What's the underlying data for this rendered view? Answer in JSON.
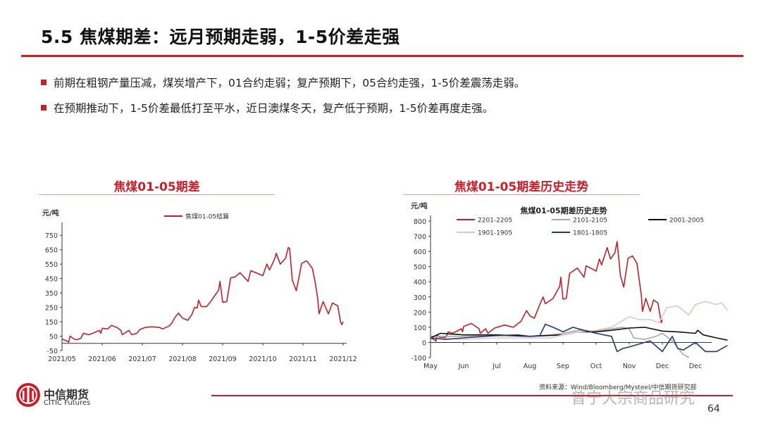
{
  "header": {
    "title": "5.5 焦煤期差：远月预期走弱，1-5价差走强",
    "accent": "#c8202a"
  },
  "bullets": [
    "前期在粗钢产量压减，煤炭增产下，01合约走弱；复产预期下，05合约走强，1-5价差震荡走弱。",
    "在预期推动下，1-5价差最低打至平水，近日澳煤冬天，复产低于预期，1-5价差再度走强。"
  ],
  "chart_data": [
    {
      "type": "line",
      "header": "焦煤01-05期差",
      "ylabel": "元/吨",
      "ylim": [
        -50,
        800
      ],
      "yticks": [
        750,
        650,
        550,
        450,
        350,
        250,
        150,
        50,
        -50
      ],
      "xticks": [
        "2021/05",
        "2021/06",
        "2021/07",
        "2021/08",
        "2021/09",
        "2021/10",
        "2021/11",
        "2021/12"
      ],
      "legend_position": "top-center",
      "grid": false,
      "series": [
        {
          "name": "焦煤01-05结算",
          "color": "#c0202a",
          "points": [
            [
              "2021-05-01",
              30
            ],
            [
              "2021-05-05",
              15
            ],
            [
              "2021-05-06",
              8
            ],
            [
              "2021-05-07",
              50
            ],
            [
              "2021-05-10",
              30
            ],
            [
              "2021-05-12",
              25
            ],
            [
              "2021-05-15",
              35
            ],
            [
              "2021-05-17",
              70
            ],
            [
              "2021-05-21",
              60
            ],
            [
              "2021-05-24",
              70
            ],
            [
              "2021-05-29",
              90
            ],
            [
              "2021-05-30",
              70
            ],
            [
              "2021-06-01",
              105
            ],
            [
              "2021-06-05",
              100
            ],
            [
              "2021-06-08",
              125
            ],
            [
              "2021-06-12",
              110
            ],
            [
              "2021-06-15",
              90
            ],
            [
              "2021-06-16",
              60
            ],
            [
              "2021-06-21",
              90
            ],
            [
              "2021-06-23",
              60
            ],
            [
              "2021-06-27",
              70
            ],
            [
              "2021-06-29",
              95
            ],
            [
              "2021-07-03",
              110
            ],
            [
              "2021-07-08",
              115
            ],
            [
              "2021-07-14",
              110
            ],
            [
              "2021-07-16",
              100
            ],
            [
              "2021-07-21",
              120
            ],
            [
              "2021-07-23",
              140
            ],
            [
              "2021-07-25",
              175
            ],
            [
              "2021-07-28",
              210
            ],
            [
              "2021-08-01",
              175
            ],
            [
              "2021-08-05",
              160
            ],
            [
              "2021-08-08",
              200
            ],
            [
              "2021-08-10",
              250
            ],
            [
              "2021-08-12",
              245
            ],
            [
              "2021-08-13",
              300
            ],
            [
              "2021-08-15",
              255
            ],
            [
              "2021-08-19",
              255
            ],
            [
              "2021-08-22",
              290
            ],
            [
              "2021-08-28",
              370
            ],
            [
              "2021-08-29",
              430
            ],
            [
              "2021-08-30",
              360
            ],
            [
              "2021-09-01",
              285
            ],
            [
              "2021-09-04",
              290
            ],
            [
              "2021-09-07",
              455
            ],
            [
              "2021-09-10",
              460
            ],
            [
              "2021-09-14",
              490
            ],
            [
              "2021-09-20",
              430
            ],
            [
              "2021-09-22",
              505
            ],
            [
              "2021-10-01",
              470
            ],
            [
              "2021-10-04",
              550
            ],
            [
              "2021-10-06",
              510
            ],
            [
              "2021-10-10",
              590
            ],
            [
              "2021-10-11",
              625
            ],
            [
              "2021-10-14",
              550
            ],
            [
              "2021-10-18",
              590
            ],
            [
              "2021-10-20",
              665
            ],
            [
              "2021-10-21",
              660
            ],
            [
              "2021-10-23",
              440
            ],
            [
              "2021-10-26",
              365
            ],
            [
              "2021-10-30",
              555
            ],
            [
              "2021-11-03",
              570
            ],
            [
              "2021-11-04",
              570
            ],
            [
              "2021-11-08",
              520
            ],
            [
              "2021-11-10",
              430
            ],
            [
              "2021-11-12",
              310
            ],
            [
              "2021-11-13",
              205
            ],
            [
              "2021-11-16",
              290
            ],
            [
              "2021-11-20",
              205
            ],
            [
              "2021-11-23",
              280
            ],
            [
              "2021-11-27",
              260
            ],
            [
              "2021-11-29",
              150
            ],
            [
              "2021-11-30",
              130
            ],
            [
              "2021-12-01",
              150
            ]
          ]
        }
      ]
    },
    {
      "type": "line",
      "header": "焦煤01-05期差历史走势",
      "title": "焦煤01-05期差历史走势",
      "ylabel": "元/吨",
      "ylim": [
        -100,
        800
      ],
      "yticks": [
        800,
        700,
        600,
        500,
        400,
        300,
        200,
        100,
        0,
        -100
      ],
      "xticks": [
        "May",
        "Jun",
        "Jul",
        "Aug",
        "Sep",
        "Oct",
        "Nov",
        "Dec",
        "Dec"
      ],
      "legend_position": "top",
      "grid": false,
      "series": [
        {
          "name": "2201-2205",
          "color": "#c0202a",
          "points": [
            [
              "05-01",
              30
            ],
            [
              "05-05",
              15
            ],
            [
              "05-06",
              8
            ],
            [
              "05-07",
              50
            ],
            [
              "05-10",
              30
            ],
            [
              "05-15",
              35
            ],
            [
              "05-17",
              70
            ],
            [
              "05-21",
              60
            ],
            [
              "05-29",
              90
            ],
            [
              "05-30",
              70
            ],
            [
              "06-01",
              105
            ],
            [
              "06-08",
              125
            ],
            [
              "06-15",
              90
            ],
            [
              "06-16",
              60
            ],
            [
              "06-21",
              90
            ],
            [
              "06-23",
              60
            ],
            [
              "06-29",
              95
            ],
            [
              "07-08",
              115
            ],
            [
              "07-16",
              100
            ],
            [
              "07-23",
              140
            ],
            [
              "07-28",
              210
            ],
            [
              "08-01",
              175
            ],
            [
              "08-05",
              160
            ],
            [
              "08-10",
              250
            ],
            [
              "08-13",
              300
            ],
            [
              "08-15",
              255
            ],
            [
              "08-22",
              290
            ],
            [
              "08-28",
              370
            ],
            [
              "08-29",
              430
            ],
            [
              "08-30",
              360
            ],
            [
              "09-01",
              285
            ],
            [
              "09-04",
              290
            ],
            [
              "09-07",
              455
            ],
            [
              "09-14",
              490
            ],
            [
              "09-20",
              430
            ],
            [
              "09-22",
              505
            ],
            [
              "10-01",
              470
            ],
            [
              "10-04",
              550
            ],
            [
              "10-06",
              510
            ],
            [
              "10-11",
              625
            ],
            [
              "10-14",
              550
            ],
            [
              "10-18",
              590
            ],
            [
              "10-20",
              665
            ],
            [
              "10-23",
              440
            ],
            [
              "10-26",
              365
            ],
            [
              "10-30",
              555
            ],
            [
              "11-04",
              570
            ],
            [
              "11-08",
              520
            ],
            [
              "11-12",
              310
            ],
            [
              "11-13",
              205
            ],
            [
              "11-16",
              290
            ],
            [
              "11-20",
              205
            ],
            [
              "11-23",
              280
            ],
            [
              "11-27",
              260
            ],
            [
              "11-30",
              130
            ],
            [
              "12-01",
              150
            ]
          ]
        },
        {
          "name": "2101-2105",
          "color": "#a8a8a8",
          "points": [
            [
              "05-01",
              40
            ],
            [
              "06-01",
              40
            ],
            [
              "07-01",
              45
            ],
            [
              "08-01",
              40
            ],
            [
              "08-20",
              50
            ],
            [
              "09-01",
              60
            ],
            [
              "09-15",
              80
            ],
            [
              "10-01",
              75
            ],
            [
              "10-15",
              90
            ],
            [
              "10-25",
              100
            ],
            [
              "11-01",
              90
            ],
            [
              "11-05",
              30
            ],
            [
              "11-15",
              20
            ],
            [
              "11-25",
              40
            ],
            [
              "12-01",
              60
            ],
            [
              "12-10",
              10
            ],
            [
              "12-20",
              -80
            ],
            [
              "12-25",
              -100
            ]
          ]
        },
        {
          "name": "2001-2005",
          "color": "#111111",
          "points": [
            [
              "05-01",
              30
            ],
            [
              "05-10",
              60
            ],
            [
              "06-01",
              50
            ],
            [
              "07-01",
              50
            ],
            [
              "08-01",
              40
            ],
            [
              "09-01",
              50
            ],
            [
              "09-15",
              70
            ],
            [
              "10-01",
              70
            ],
            [
              "10-15",
              80
            ],
            [
              "11-01",
              95
            ],
            [
              "11-15",
              100
            ],
            [
              "12-01",
              75
            ],
            [
              "12-15",
              70
            ],
            [
              "01-01",
              60
            ],
            [
              "01-03",
              80
            ],
            [
              "01-08",
              50
            ],
            [
              "01-20",
              30
            ],
            [
              "01-30",
              15
            ]
          ]
        },
        {
          "name": "1901-1905",
          "color": "#e8c4c4",
          "points": [
            [
              "05-01",
              30
            ],
            [
              "06-01",
              20
            ],
            [
              "07-01",
              30
            ],
            [
              "08-01",
              30
            ],
            [
              "08-20",
              30
            ],
            [
              "09-01",
              50
            ],
            [
              "09-15",
              70
            ],
            [
              "10-01",
              80
            ],
            [
              "10-15",
              100
            ],
            [
              "11-01",
              170
            ],
            [
              "11-10",
              150
            ],
            [
              "11-20",
              150
            ],
            [
              "11-28",
              130
            ],
            [
              "12-05",
              230
            ],
            [
              "12-15",
              240
            ],
            [
              "12-25",
              180
            ],
            [
              "01-01",
              250
            ],
            [
              "01-10",
              270
            ],
            [
              "01-20",
              250
            ],
            [
              "01-25",
              260
            ],
            [
              "01-30",
              210
            ]
          ]
        },
        {
          "name": "1801-1805",
          "color": "#1f3c6e",
          "points": [
            [
              "05-01",
              30
            ],
            [
              "05-15",
              20
            ],
            [
              "06-01",
              30
            ],
            [
              "07-01",
              45
            ],
            [
              "07-20",
              50
            ],
            [
              "08-01",
              40
            ],
            [
              "08-10",
              45
            ],
            [
              "08-15",
              120
            ],
            [
              "08-22",
              100
            ],
            [
              "09-01",
              70
            ],
            [
              "09-10",
              100
            ],
            [
              "09-20",
              80
            ],
            [
              "10-01",
              60
            ],
            [
              "10-15",
              40
            ],
            [
              "10-20",
              -60
            ],
            [
              "10-25",
              -40
            ],
            [
              "11-01",
              -30
            ],
            [
              "11-15",
              0
            ],
            [
              "11-20",
              10
            ],
            [
              "12-01",
              -60
            ],
            [
              "12-10",
              40
            ],
            [
              "12-15",
              -40
            ],
            [
              "12-20",
              -50
            ],
            [
              "01-01",
              0
            ],
            [
              "01-10",
              -60
            ],
            [
              "01-20",
              -60
            ],
            [
              "01-30",
              -20
            ]
          ]
        }
      ]
    }
  ],
  "footer": {
    "logo_cn": "中信期货",
    "logo_en": "CITIC Futures",
    "source": "资料来源：Wind/Bloomberg/Mysteel/中信期货研究部",
    "watermark": "曾宁大宗商品研究",
    "page": "64"
  }
}
